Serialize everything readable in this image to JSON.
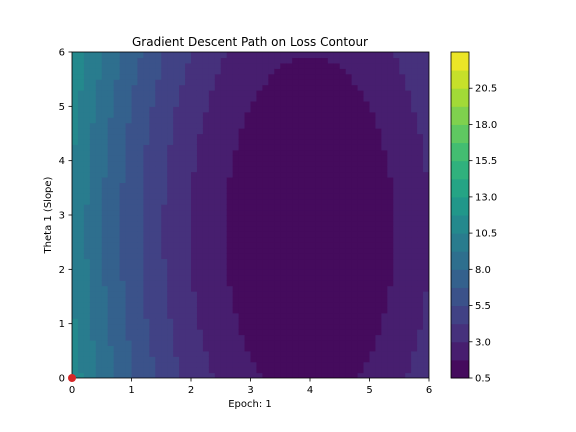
{
  "chart_data": {
    "type": "contour",
    "title": "Gradient Descent Path on Loss Contour",
    "xlabel": "Epoch: 1",
    "ylabel": "Theta 1 (Slope)",
    "xlim": [
      0,
      6
    ],
    "ylim": [
      0,
      6
    ],
    "x_ticks": [
      "0",
      "1",
      "2",
      "3",
      "4",
      "5",
      "6"
    ],
    "y_ticks": [
      "0",
      "1",
      "2",
      "3",
      "4",
      "5",
      "6"
    ],
    "colormap": "viridis",
    "colorbar": {
      "min": 0.5,
      "max": 23.0,
      "ticks": [
        "0.5",
        "3.0",
        "5.5",
        "8.0",
        "10.5",
        "13.0",
        "15.5",
        "18.0",
        "20.5"
      ],
      "levels": 18
    },
    "loss_minimum": {
      "x": 4.0,
      "y": 2.7
    },
    "path": [
      {
        "x": 0,
        "y": 0
      }
    ],
    "path_color": "#d62728"
  }
}
